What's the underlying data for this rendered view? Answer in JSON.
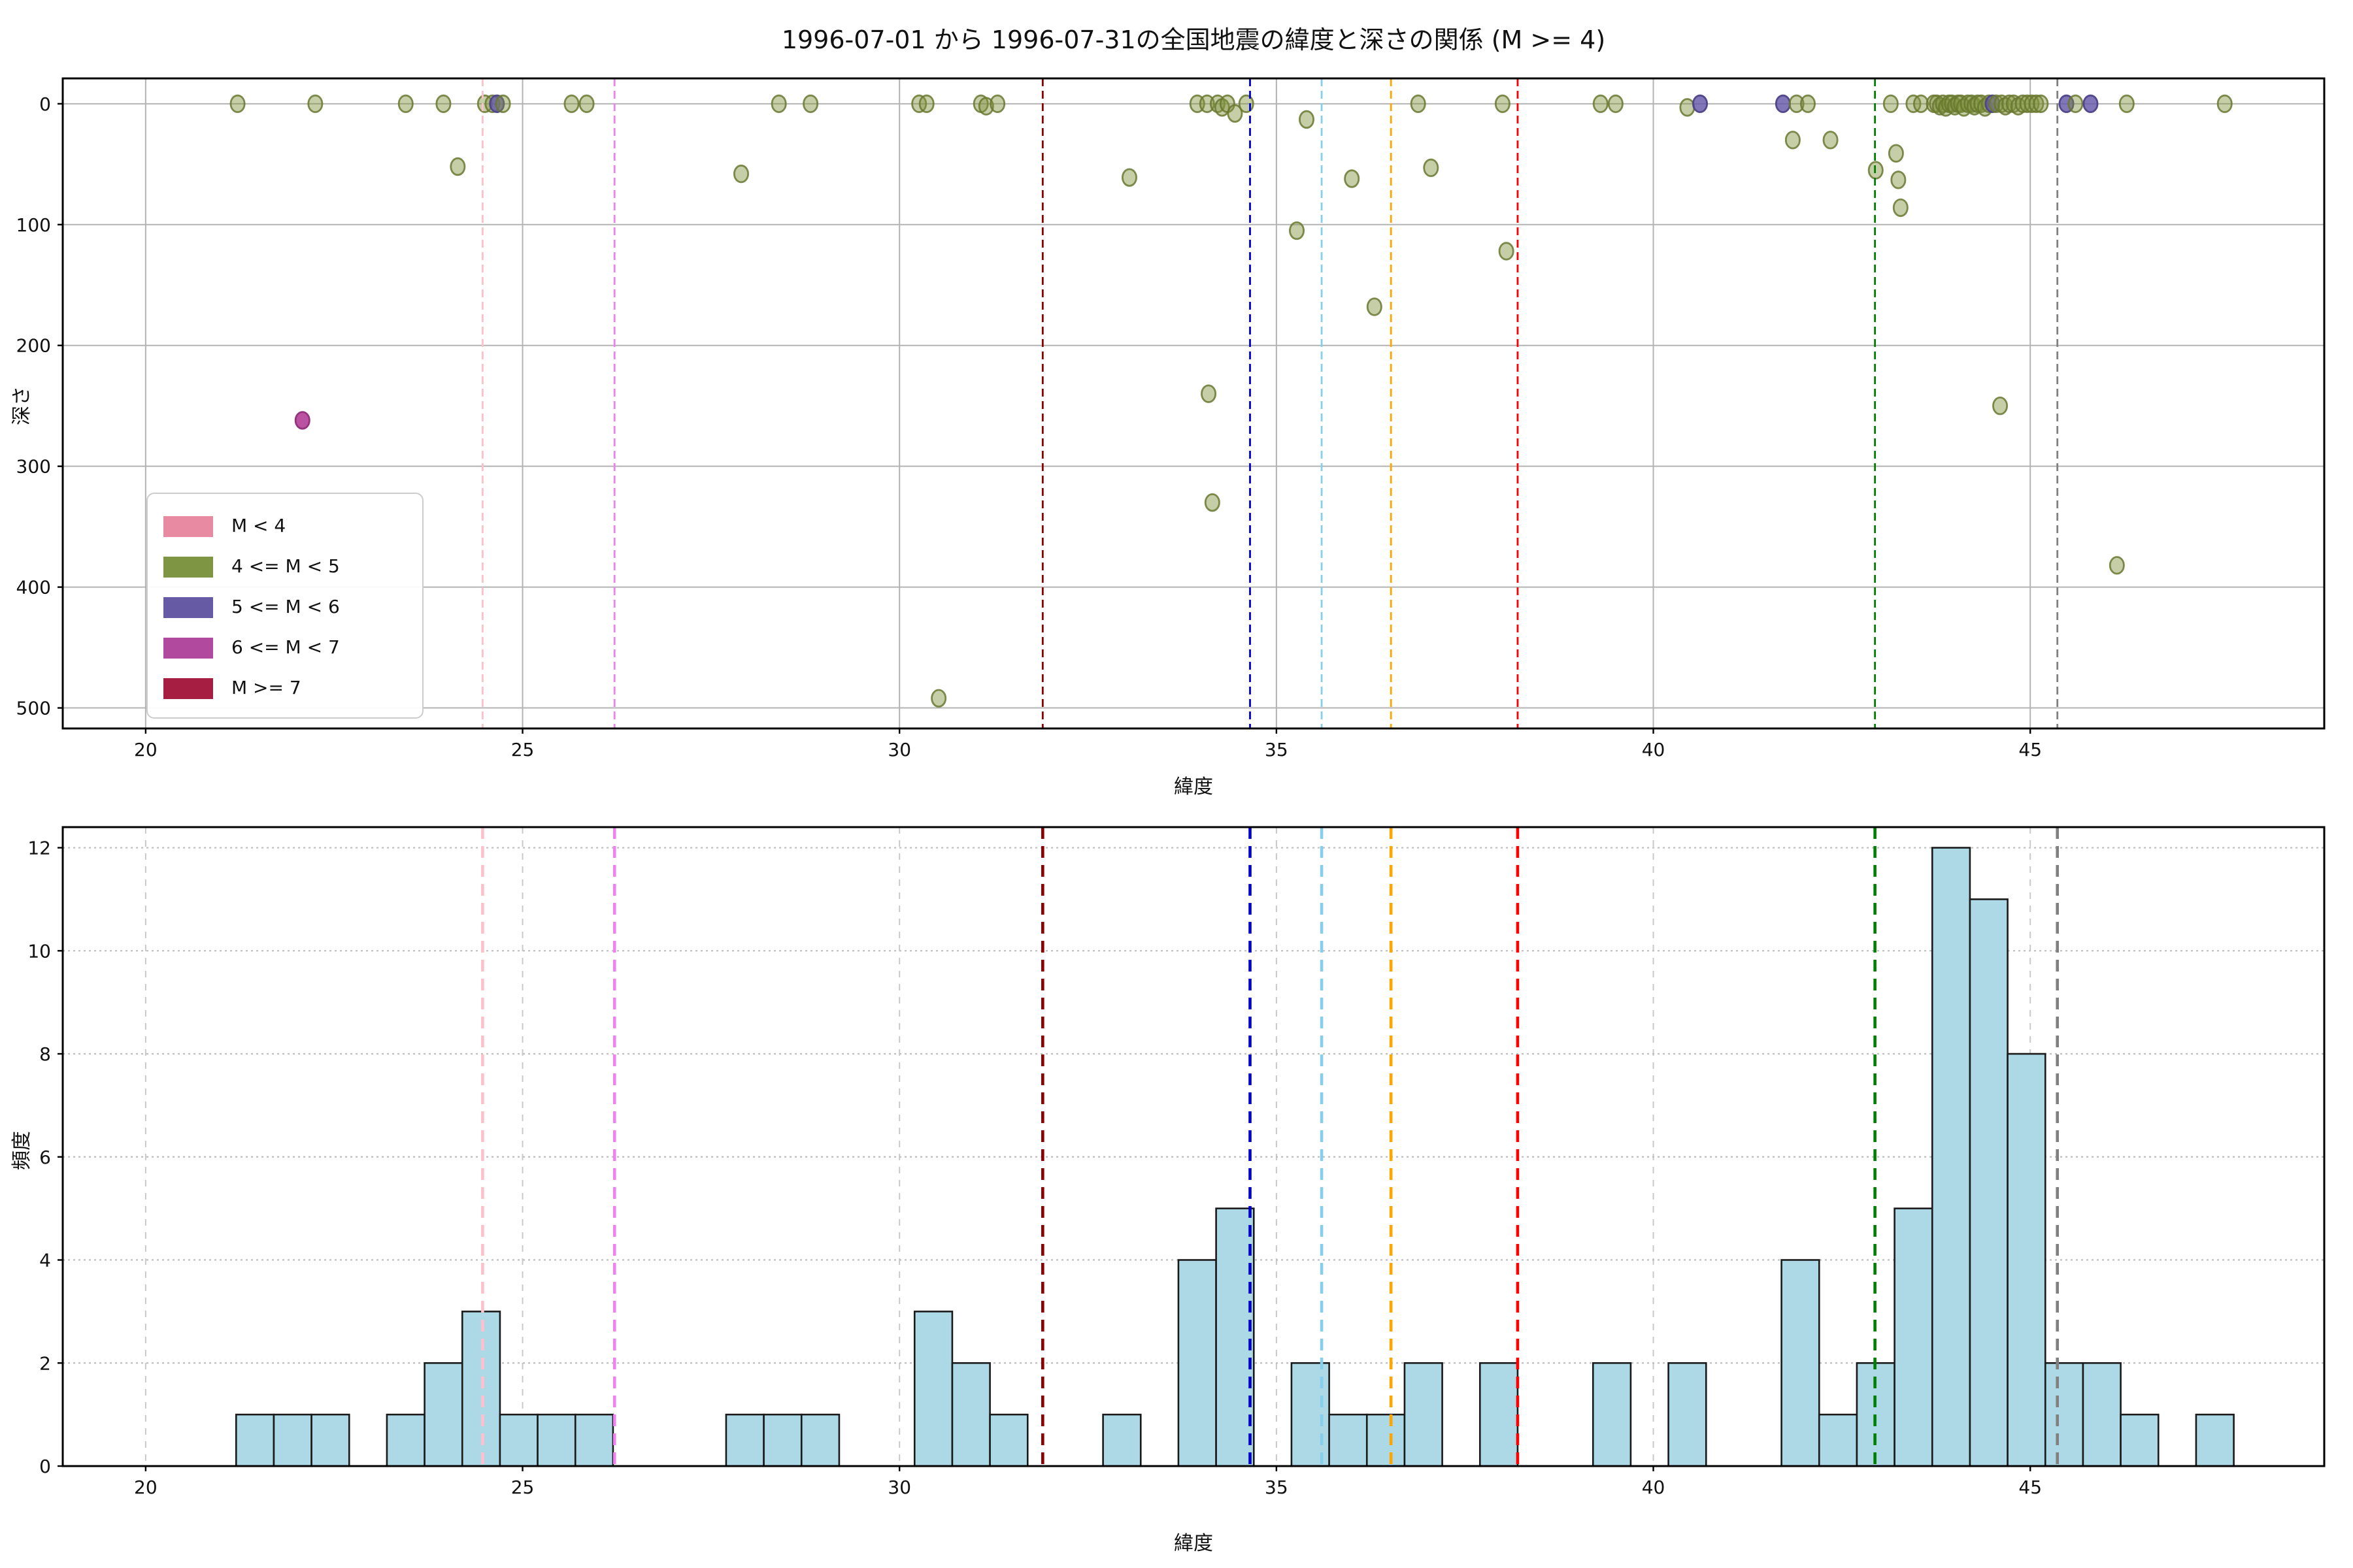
{
  "figure": {
    "title": "1996-07-01 から 1996-07-31の全国地震の緯度と深さの関係 (M >= 4)",
    "background_color": "#ffffff"
  },
  "chart_data": [
    {
      "id": "depth-scatter",
      "type": "scatter",
      "title": "1996-07-01 から 1996-07-31の全国地震の緯度と深さの関係 (M >= 4)",
      "xlabel": "緯度",
      "ylabel": "深さ",
      "xlim": [
        18.9,
        48.9
      ],
      "ylim": [
        517,
        -21
      ],
      "y_axis_inverted": true,
      "xticks": [
        20,
        25,
        30,
        35,
        40,
        45
      ],
      "yticks": [
        0,
        100,
        200,
        300,
        400,
        500
      ],
      "grid": "solid",
      "legend": {
        "position": "lower left",
        "items": [
          {
            "label": "M < 4",
            "color": "#e78aa2"
          },
          {
            "label": "4 <= M < 5",
            "color": "#7e9544"
          },
          {
            "label": "5 <= M < 6",
            "color": "#675aa5"
          },
          {
            "label": "6 <= M < 7",
            "color": "#b14a9e"
          },
          {
            "label": "M >= 7",
            "color": "#a61e42"
          }
        ]
      },
      "point_style": {
        "m4": {
          "fill": "rgba(128,146,62,0.45)",
          "stroke": "rgba(104,120,48,0.85)"
        },
        "m5": {
          "fill": "rgba(97,84,165,0.80)",
          "stroke": "rgba(77,66,135,0.95)"
        },
        "m6": {
          "fill": "rgba(183,73,156,0.95)",
          "stroke": "rgba(148,52,126,1)"
        }
      },
      "points": [
        [
          21.22,
          0,
          "m4"
        ],
        [
          22.08,
          262,
          "m6"
        ],
        [
          22.25,
          0,
          "m4"
        ],
        [
          23.45,
          0,
          "m4"
        ],
        [
          23.95,
          0,
          "m4"
        ],
        [
          24.14,
          52,
          "m4"
        ],
        [
          24.5,
          0,
          "m4"
        ],
        [
          24.6,
          0,
          "m4"
        ],
        [
          24.66,
          0,
          "m5"
        ],
        [
          24.74,
          0,
          "m4"
        ],
        [
          25.65,
          0,
          "m4"
        ],
        [
          25.85,
          0,
          "m4"
        ],
        [
          27.9,
          58,
          "m4"
        ],
        [
          28.4,
          0,
          "m4"
        ],
        [
          28.82,
          0,
          "m4"
        ],
        [
          30.26,
          0,
          "m4"
        ],
        [
          30.36,
          0,
          "m4"
        ],
        [
          30.52,
          492,
          "m4"
        ],
        [
          31.08,
          0,
          "m4"
        ],
        [
          31.15,
          2,
          "m4"
        ],
        [
          31.3,
          0,
          "m4"
        ],
        [
          33.05,
          61,
          "m4"
        ],
        [
          33.95,
          0,
          "m4"
        ],
        [
          34.08,
          0,
          "m4"
        ],
        [
          34.1,
          240,
          "m4"
        ],
        [
          34.15,
          330,
          "m4"
        ],
        [
          34.22,
          0,
          "m4"
        ],
        [
          34.28,
          3,
          "m4"
        ],
        [
          34.35,
          0,
          "m4"
        ],
        [
          34.45,
          8,
          "m4"
        ],
        [
          34.6,
          0,
          "m4"
        ],
        [
          35.4,
          13,
          "m4"
        ],
        [
          35.27,
          105,
          "m4"
        ],
        [
          36.0,
          62,
          "m4"
        ],
        [
          36.3,
          168,
          "m4"
        ],
        [
          36.88,
          0,
          "m4"
        ],
        [
          37.05,
          53,
          "m4"
        ],
        [
          38.0,
          0,
          "m4"
        ],
        [
          38.05,
          122,
          "m4"
        ],
        [
          39.3,
          0,
          "m4"
        ],
        [
          39.5,
          0,
          "m4"
        ],
        [
          40.45,
          3,
          "m4"
        ],
        [
          40.62,
          0,
          "m5"
        ],
        [
          41.72,
          0,
          "m5"
        ],
        [
          41.85,
          30,
          "m4"
        ],
        [
          41.9,
          0,
          "m4"
        ],
        [
          42.05,
          0,
          "m4"
        ],
        [
          42.35,
          30,
          "m4"
        ],
        [
          42.95,
          55,
          "m4"
        ],
        [
          43.15,
          0,
          "m4"
        ],
        [
          43.22,
          41,
          "m4"
        ],
        [
          43.25,
          63,
          "m4"
        ],
        [
          43.28,
          86,
          "m4"
        ],
        [
          43.45,
          0,
          "m4"
        ],
        [
          43.55,
          0,
          "m4"
        ],
        [
          43.72,
          0,
          "m4"
        ],
        [
          43.76,
          0,
          "m4"
        ],
        [
          43.8,
          2,
          "m4"
        ],
        [
          43.84,
          0,
          "m4"
        ],
        [
          43.88,
          3,
          "m4"
        ],
        [
          43.92,
          0,
          "m4"
        ],
        [
          43.96,
          0,
          "m4"
        ],
        [
          44.0,
          2,
          "m4"
        ],
        [
          44.04,
          0,
          "m4"
        ],
        [
          44.08,
          0,
          "m4"
        ],
        [
          44.12,
          3,
          "m4"
        ],
        [
          44.17,
          0,
          "m4"
        ],
        [
          44.22,
          0,
          "m4"
        ],
        [
          44.26,
          2,
          "m4"
        ],
        [
          44.3,
          0,
          "m4"
        ],
        [
          44.35,
          0,
          "m4"
        ],
        [
          44.4,
          3,
          "m4"
        ],
        [
          44.45,
          0,
          "m4"
        ],
        [
          44.5,
          0,
          "m5"
        ],
        [
          44.55,
          0,
          "m4"
        ],
        [
          44.6,
          250,
          "m4"
        ],
        [
          44.62,
          0,
          "m4"
        ],
        [
          44.67,
          2,
          "m4"
        ],
        [
          44.72,
          0,
          "m4"
        ],
        [
          44.78,
          0,
          "m4"
        ],
        [
          44.84,
          2,
          "m4"
        ],
        [
          44.9,
          0,
          "m4"
        ],
        [
          44.96,
          0,
          "m4"
        ],
        [
          45.02,
          0,
          "m4"
        ],
        [
          45.08,
          0,
          "m4"
        ],
        [
          45.14,
          0,
          "m4"
        ],
        [
          45.48,
          0,
          "m5"
        ],
        [
          45.6,
          0,
          "m4"
        ],
        [
          45.8,
          0,
          "m5"
        ],
        [
          46.15,
          382,
          "m4"
        ],
        [
          46.28,
          0,
          "m4"
        ],
        [
          47.58,
          0,
          "m4"
        ]
      ],
      "reference_lines": [
        {
          "lat": 24.47,
          "color": "#ffc0cb"
        },
        {
          "lat": 26.22,
          "color": "#ee82ee"
        },
        {
          "lat": 31.9,
          "color": "#8b0000"
        },
        {
          "lat": 34.65,
          "color": "#0000cd"
        },
        {
          "lat": 35.6,
          "color": "#87ceeb"
        },
        {
          "lat": 36.52,
          "color": "#ffa500"
        },
        {
          "lat": 38.2,
          "color": "#ff0000"
        },
        {
          "lat": 42.94,
          "color": "#008000"
        },
        {
          "lat": 45.36,
          "color": "#808080"
        }
      ]
    },
    {
      "id": "latitude-histogram",
      "type": "bar",
      "xlabel": "緯度",
      "ylabel": "頻度",
      "xlim": [
        18.9,
        48.9
      ],
      "ylim": [
        0,
        12.4
      ],
      "xticks": [
        20,
        25,
        30,
        35,
        40,
        45
      ],
      "yticks": [
        0,
        2,
        4,
        6,
        8,
        10,
        12
      ],
      "grid": "dotted",
      "bar_fill": "#add8e6",
      "bar_edge": "#1a1a1a",
      "bin_start": 21.2,
      "bin_width": 0.5,
      "counts": [
        1,
        1,
        1,
        0,
        1,
        2,
        3,
        1,
        1,
        1,
        0,
        0,
        0,
        1,
        1,
        1,
        0,
        0,
        3,
        2,
        1,
        0,
        0,
        1,
        0,
        4,
        5,
        0,
        2,
        1,
        1,
        2,
        0,
        2,
        0,
        0,
        2,
        0,
        2,
        0,
        0,
        4,
        1,
        2,
        5,
        12,
        11,
        8,
        2,
        2,
        1,
        0,
        1
      ],
      "reference_lines": [
        {
          "lat": 24.47,
          "color": "#ffc0cb"
        },
        {
          "lat": 26.22,
          "color": "#ee82ee"
        },
        {
          "lat": 31.9,
          "color": "#8b0000"
        },
        {
          "lat": 34.65,
          "color": "#0000cd"
        },
        {
          "lat": 35.6,
          "color": "#87ceeb"
        },
        {
          "lat": 36.52,
          "color": "#ffa500"
        },
        {
          "lat": 38.2,
          "color": "#ff0000"
        },
        {
          "lat": 42.94,
          "color": "#008000"
        },
        {
          "lat": 45.36,
          "color": "#808080"
        }
      ]
    }
  ]
}
